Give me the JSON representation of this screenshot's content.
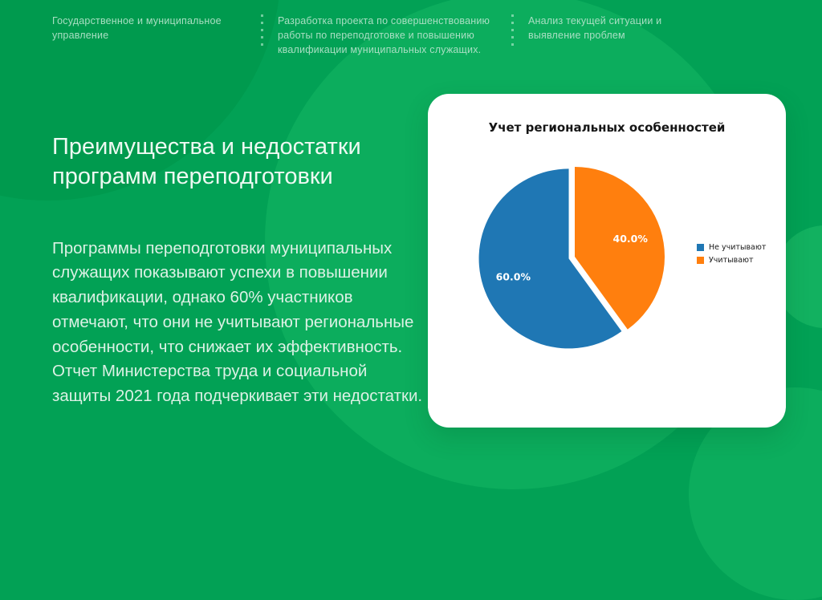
{
  "background": {
    "base_color": "#02A155",
    "light_circle_color": "#0CAD5D",
    "dark_circle_color": "#009A4E"
  },
  "header": {
    "items": [
      {
        "label": "Государственное и муниципальное управление"
      },
      {
        "label": "Разработка проекта по совершенствованию работы по переподготовке и повышению квалификации муниципальных служащих."
      },
      {
        "label": "Анализ текущей ситуации и выявление проблем"
      }
    ]
  },
  "main": {
    "title": "Преимущества и недостатки программ переподготовки",
    "paragraph": "Программы переподготовки муниципальных служащих показывают успехи в повышении квалификации, однако 60% участников отмечают, что они не учитывают региональные особенности, что снижает их эффективность. Отчет Министерства труда и социальной защиты 2021 года подчеркивает эти недостатки."
  },
  "chart_data": {
    "type": "pie",
    "title": "Учет региональных особенностей",
    "start_angle": 90,
    "counterclockwise": true,
    "pct_distance": 0.65,
    "legend_position": "right",
    "slices": [
      {
        "label": "Не учитывают",
        "value": 60.0,
        "display": "60.0%",
        "color": "#1f77b4",
        "explode": 0.07
      },
      {
        "label": "Учитывают",
        "value": 40.0,
        "display": "40.0%",
        "color": "#ff7f0e",
        "explode": 0.0
      }
    ]
  }
}
